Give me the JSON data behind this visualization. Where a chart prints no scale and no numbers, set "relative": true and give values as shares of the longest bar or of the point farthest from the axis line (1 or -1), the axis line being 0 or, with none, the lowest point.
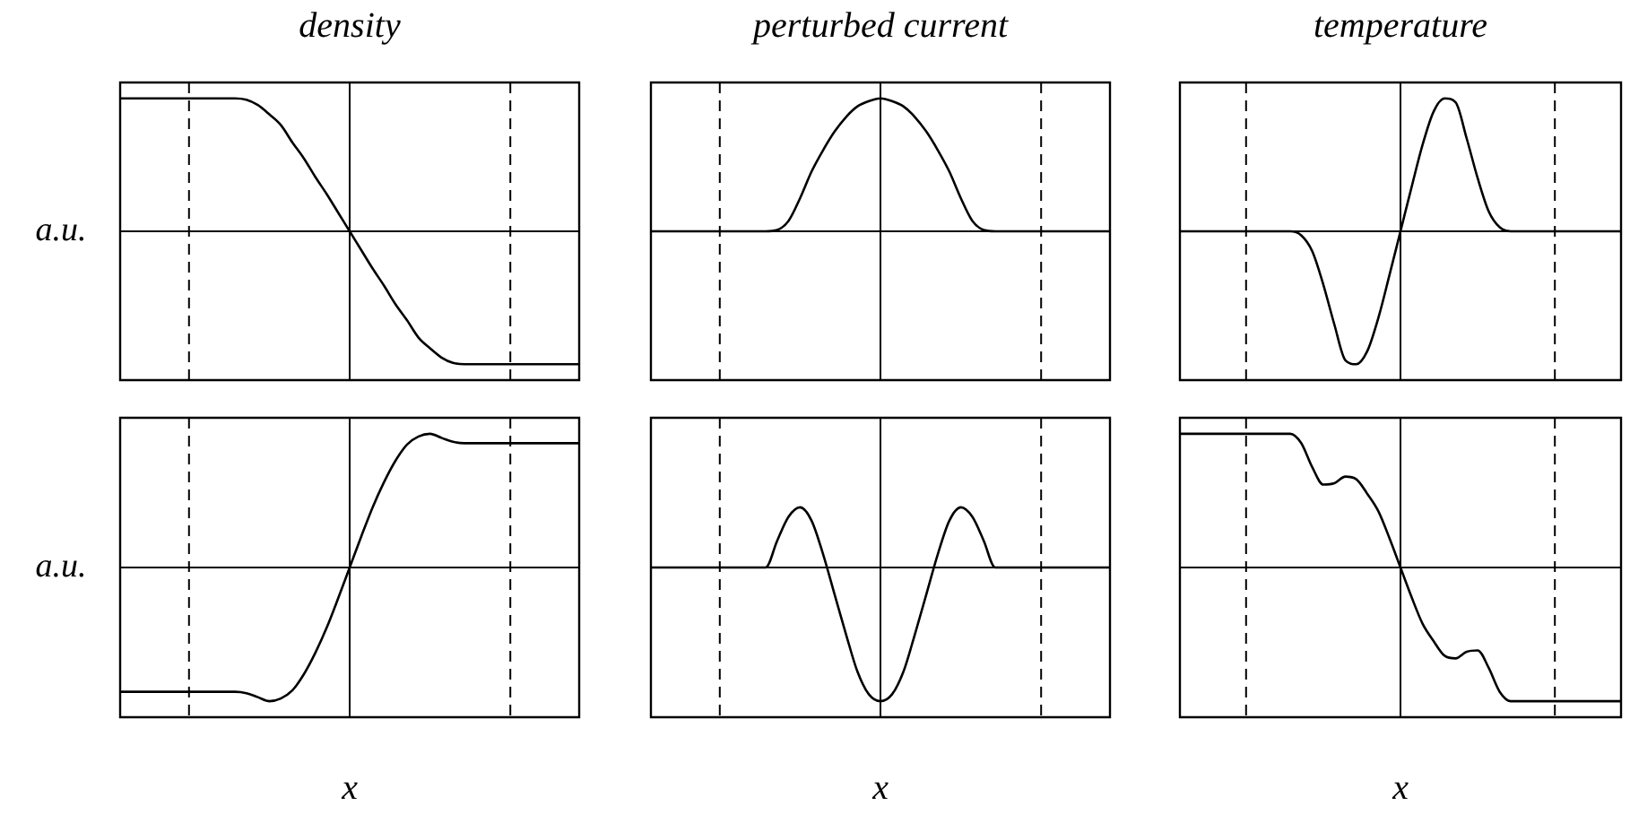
{
  "chart_data": [
    {
      "type": "line",
      "title": "density",
      "ylabel": "a.u.",
      "relative": true,
      "marker": "none",
      "tick_labels": false,
      "color": "#000000",
      "categories": [
        null,
        null,
        null,
        null,
        null,
        null,
        null,
        null,
        null,
        null,
        null,
        null,
        null,
        null,
        null,
        null,
        null,
        null,
        null,
        null,
        null,
        null,
        null,
        null,
        null,
        null,
        null,
        null,
        null,
        null,
        null,
        null,
        null,
        null,
        null,
        null,
        null,
        null,
        null,
        null,
        null
      ],
      "values": [
        1,
        1,
        1,
        1,
        1,
        1,
        1,
        1,
        1,
        1,
        1,
        0.99,
        0.95,
        0.88,
        0.8,
        0.67,
        0.55,
        0.41,
        0.28,
        0.14,
        0,
        -0.14,
        -0.28,
        -0.41,
        -0.55,
        -0.67,
        -0.8,
        -0.88,
        -0.95,
        -0.99,
        -1,
        -1,
        -1,
        -1,
        -1,
        -1,
        -1,
        -1,
        -1,
        -1,
        -1
      ]
    },
    {
      "type": "line",
      "title": "perturbed current",
      "relative": true,
      "marker": "none",
      "tick_labels": false,
      "color": "#000000",
      "categories": [
        null,
        null,
        null,
        null,
        null,
        null,
        null,
        null,
        null,
        null,
        null,
        null,
        null,
        null,
        null,
        null,
        null,
        null,
        null,
        null,
        null,
        null,
        null,
        null,
        null,
        null,
        null,
        null,
        null,
        null,
        null,
        null,
        null,
        null,
        null,
        null,
        null,
        null,
        null,
        null,
        null
      ],
      "values": [
        0,
        0,
        0,
        0,
        0,
        0,
        0,
        0,
        0,
        0,
        0,
        0.01,
        0.08,
        0.25,
        0.45,
        0.61,
        0.75,
        0.86,
        0.94,
        0.98,
        1,
        0.98,
        0.94,
        0.86,
        0.75,
        0.61,
        0.45,
        0.25,
        0.08,
        0.01,
        0,
        0,
        0,
        0,
        0,
        0,
        0,
        0,
        0,
        0,
        0
      ]
    },
    {
      "type": "line",
      "title": "temperature",
      "relative": true,
      "marker": "none",
      "tick_labels": false,
      "color": "#000000",
      "categories": [
        null,
        null,
        null,
        null,
        null,
        null,
        null,
        null,
        null,
        null,
        null,
        null,
        null,
        null,
        null,
        null,
        null,
        null,
        null,
        null,
        null,
        null,
        null,
        null,
        null,
        null,
        null,
        null,
        null,
        null,
        null,
        null,
        null,
        null,
        null,
        null,
        null,
        null,
        null,
        null,
        null
      ],
      "values": [
        0,
        0,
        0,
        0,
        0,
        0,
        0,
        0,
        0,
        0,
        0,
        -0.03,
        -0.15,
        -0.4,
        -0.7,
        -0.97,
        -1,
        -0.9,
        -0.65,
        -0.33,
        0,
        0.33,
        0.65,
        0.9,
        1,
        0.97,
        0.7,
        0.4,
        0.15,
        0.03,
        0,
        0,
        0,
        0,
        0,
        0,
        0,
        0,
        0,
        0,
        0
      ]
    },
    {
      "type": "line",
      "xlabel": "x",
      "ylabel": "a.u.",
      "relative": true,
      "marker": "none",
      "tick_labels": false,
      "color": "#000000",
      "categories": [
        null,
        null,
        null,
        null,
        null,
        null,
        null,
        null,
        null,
        null,
        null,
        null,
        null,
        null,
        null,
        null,
        null,
        null,
        null,
        null,
        null,
        null,
        null,
        null,
        null,
        null,
        null,
        null,
        null,
        null,
        null,
        null,
        null,
        null,
        null,
        null,
        null,
        null,
        null,
        null,
        null
      ],
      "values": [
        -0.93,
        -0.93,
        -0.93,
        -0.93,
        -0.93,
        -0.93,
        -0.93,
        -0.93,
        -0.93,
        -0.93,
        -0.93,
        -0.94,
        -0.97,
        -1,
        -0.98,
        -0.92,
        -0.8,
        -0.64,
        -0.45,
        -0.23,
        0,
        0.23,
        0.45,
        0.64,
        0.8,
        0.92,
        0.98,
        1,
        0.97,
        0.94,
        0.93,
        0.93,
        0.93,
        0.93,
        0.93,
        0.93,
        0.93,
        0.93,
        0.93,
        0.93,
        0.93
      ]
    },
    {
      "type": "line",
      "xlabel": "x",
      "relative": true,
      "marker": "none",
      "tick_labels": false,
      "color": "#000000",
      "categories": [
        null,
        null,
        null,
        null,
        null,
        null,
        null,
        null,
        null,
        null,
        null,
        null,
        null,
        null,
        null,
        null,
        null,
        null,
        null,
        null,
        null,
        null,
        null,
        null,
        null,
        null,
        null,
        null,
        null,
        null,
        null,
        null,
        null,
        null,
        null,
        null,
        null,
        null,
        null,
        null,
        null
      ],
      "values": [
        0,
        0,
        0,
        0,
        0,
        0,
        0,
        0,
        0,
        0,
        0,
        0.2,
        0.38,
        0.45,
        0.35,
        0.1,
        -0.2,
        -0.5,
        -0.78,
        -0.95,
        -1,
        -0.95,
        -0.78,
        -0.5,
        -0.2,
        0.1,
        0.35,
        0.45,
        0.38,
        0.2,
        0,
        0,
        0,
        0,
        0,
        0,
        0,
        0,
        0,
        0,
        0
      ]
    },
    {
      "type": "line",
      "xlabel": "x",
      "relative": true,
      "marker": "none",
      "tick_labels": false,
      "color": "#000000",
      "categories": [
        null,
        null,
        null,
        null,
        null,
        null,
        null,
        null,
        null,
        null,
        null,
        null,
        null,
        null,
        null,
        null,
        null,
        null,
        null,
        null,
        null,
        null,
        null,
        null,
        null,
        null,
        null,
        null,
        null,
        null,
        null,
        null,
        null,
        null,
        null,
        null,
        null,
        null,
        null,
        null,
        null
      ],
      "values": [
        1,
        1,
        1,
        1,
        1,
        1,
        1,
        1,
        1,
        1,
        1,
        0.93,
        0.75,
        0.62,
        0.63,
        0.68,
        0.66,
        0.55,
        0.42,
        0.22,
        0,
        -0.22,
        -0.42,
        -0.55,
        -0.66,
        -0.68,
        -0.63,
        -0.62,
        -0.75,
        -0.93,
        -1,
        -1,
        -1,
        -1,
        -1,
        -1,
        -1,
        -1,
        -1,
        -1,
        -1
      ]
    }
  ]
}
